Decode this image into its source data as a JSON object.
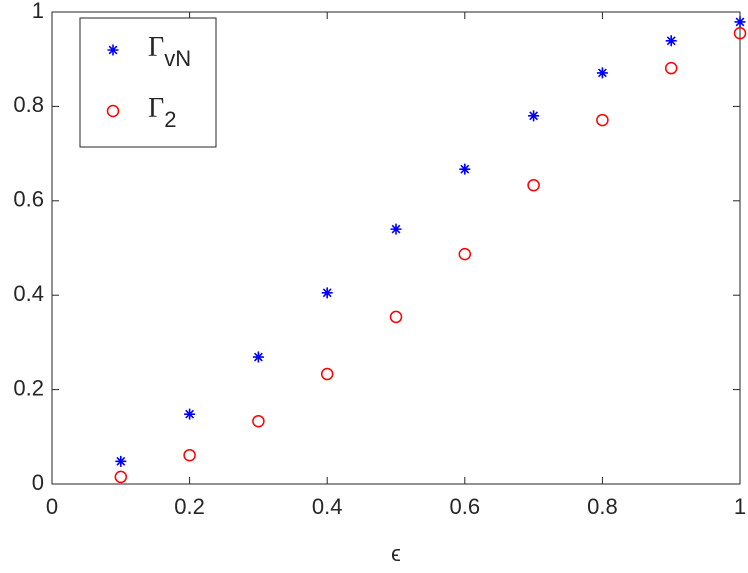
{
  "chart_data": {
    "type": "scatter",
    "x_label": "ϵ",
    "x": [
      0.1,
      0.2,
      0.3,
      0.4,
      0.5,
      0.6,
      0.7,
      0.8,
      0.9,
      1.0
    ],
    "series": [
      {
        "name": "ΓvN",
        "color": "#0000ff",
        "marker": "star",
        "values": [
          0.048,
          0.148,
          0.269,
          0.405,
          0.54,
          0.667,
          0.78,
          0.871,
          0.939,
          0.979
        ]
      },
      {
        "name": "Γ2",
        "color": "#ff0000",
        "marker": "circle",
        "values": [
          0.015,
          0.061,
          0.133,
          0.233,
          0.354,
          0.487,
          0.633,
          0.771,
          0.881,
          0.955
        ]
      }
    ],
    "xlim": [
      0,
      1
    ],
    "ylim": [
      0,
      1
    ],
    "xticks": [
      0,
      0.2,
      0.4,
      0.6,
      0.8,
      1
    ],
    "yticks": [
      0,
      0.2,
      0.4,
      0.6,
      0.8,
      1
    ],
    "grid": false,
    "legend": "upper left"
  }
}
